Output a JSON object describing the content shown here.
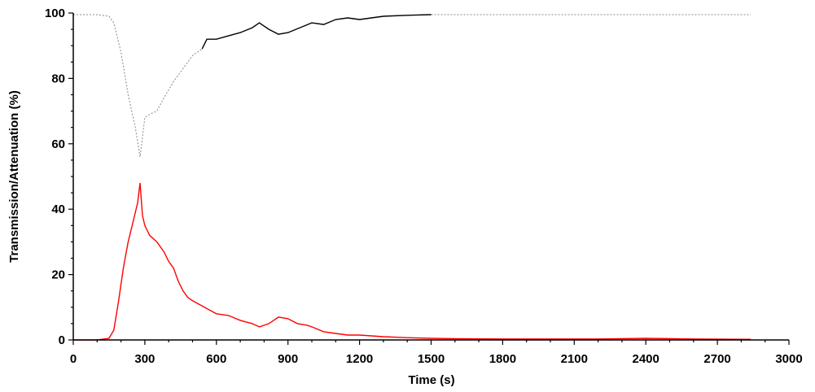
{
  "chart_data": {
    "type": "line",
    "title": "",
    "xlabel": "Time (s)",
    "ylabel": "Transmission/Attenuation (%)",
    "xlim": [
      0,
      3000
    ],
    "ylim": [
      0,
      100
    ],
    "x_ticks": [
      0,
      300,
      600,
      900,
      1200,
      1500,
      1800,
      2100,
      2400,
      2700,
      3000
    ],
    "y_ticks": [
      0,
      20,
      40,
      60,
      80,
      100
    ],
    "grid": false,
    "legend": "none",
    "series": [
      {
        "color": "#000000",
        "style": "dotted-to-solid",
        "x": [
          0,
          100,
          150,
          170,
          200,
          230,
          260,
          280,
          290,
          300,
          320,
          350,
          380,
          420,
          460,
          500,
          540,
          560,
          600,
          650,
          700,
          750,
          780,
          820,
          860,
          900,
          950,
          1000,
          1050,
          1100,
          1150,
          1200,
          1250,
          1300,
          1400,
          1500,
          1600,
          1800,
          2000,
          2200,
          2400,
          2600,
          2800,
          2840
        ],
        "y": [
          99.5,
          99.5,
          99,
          97,
          88,
          75,
          65,
          56,
          62,
          68,
          69,
          70,
          74,
          79,
          83,
          87,
          89,
          92,
          92,
          93,
          94,
          95.5,
          97,
          95,
          93.5,
          94,
          95.5,
          97,
          96.5,
          98,
          98.5,
          98,
          98.5,
          99,
          99.3,
          99.5,
          99.5,
          99.5,
          99.5,
          99.5,
          99.5,
          99.5,
          99.5,
          99.5
        ]
      },
      {
        "color": "#ff0000",
        "style": "solid",
        "x": [
          0,
          100,
          150,
          170,
          190,
          210,
          230,
          250,
          270,
          280,
          290,
          300,
          320,
          350,
          380,
          400,
          420,
          440,
          460,
          480,
          500,
          550,
          600,
          650,
          700,
          750,
          780,
          820,
          860,
          900,
          940,
          980,
          1000,
          1050,
          1100,
          1150,
          1200,
          1300,
          1400,
          1500,
          1600,
          1800,
          2000,
          2200,
          2400,
          2600,
          2800,
          2840
        ],
        "y": [
          0,
          0,
          0.5,
          3,
          12,
          22,
          30,
          36,
          42,
          48,
          38,
          35,
          32,
          30,
          27,
          24,
          22,
          18,
          15,
          13,
          12,
          10,
          8,
          7.5,
          6,
          5,
          4,
          5,
          7,
          6.5,
          5,
          4.5,
          4,
          2.5,
          2,
          1.5,
          1.5,
          1,
          0.7,
          0.5,
          0.4,
          0.3,
          0.3,
          0.3,
          0.5,
          0.3,
          0.2,
          0.2
        ]
      }
    ]
  }
}
